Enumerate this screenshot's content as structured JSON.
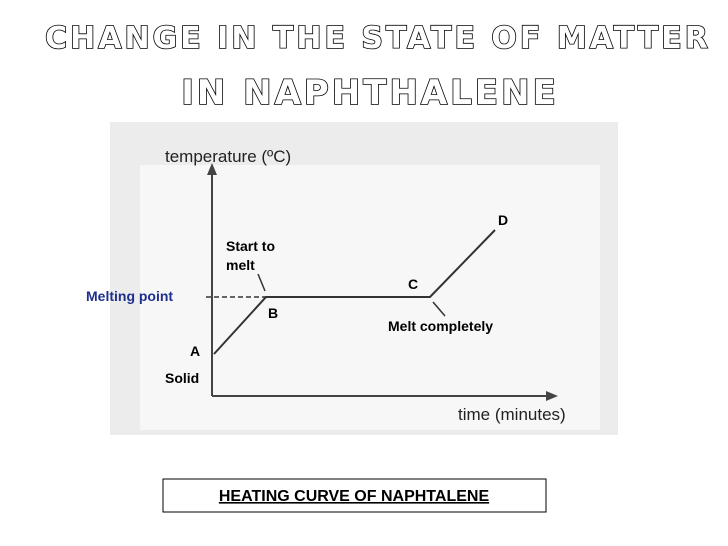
{
  "header": {
    "title_line1": "CHANGE IN THE STATE OF MATTER",
    "title_line2": "IN NAPHTHALENE"
  },
  "diagram": {
    "y_axis_label": "temperature (ºC)",
    "x_axis_label": "time (minutes)",
    "points": {
      "A": "A",
      "B": "B",
      "C": "C",
      "D": "D"
    },
    "annotations": {
      "start_to_melt_1": "Start to",
      "start_to_melt_2": "melt",
      "melting_point": "Melting point",
      "melt_completely": "Melt completely",
      "solid": "Solid"
    }
  },
  "caption": "HEATING CURVE OF NAPHTALENE"
}
